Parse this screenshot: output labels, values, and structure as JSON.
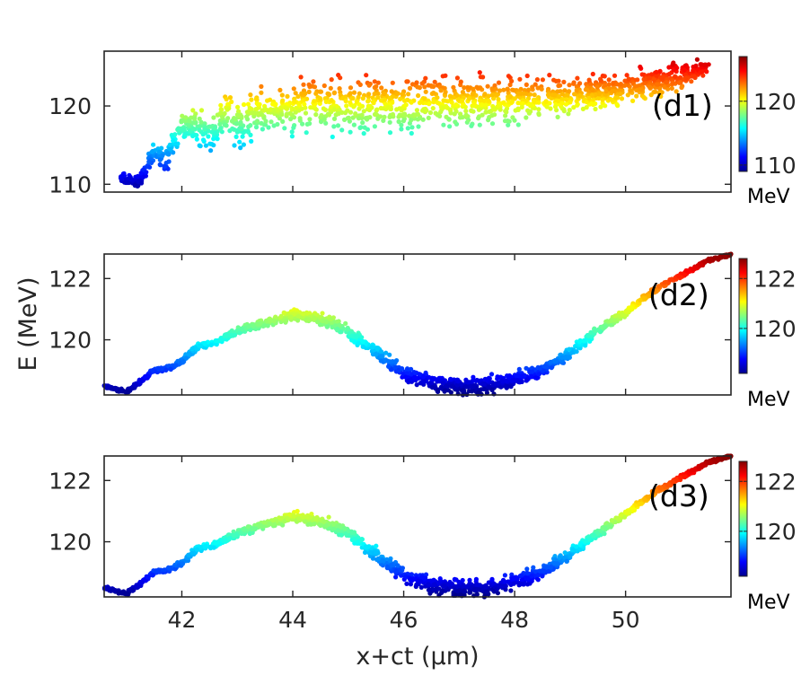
{
  "chart_data": {
    "type": "scatter",
    "xlabel": "x+ct (μm)",
    "ylabel": "E (MeV)",
    "xlim": [
      40.6,
      51.9
    ],
    "xticks": [
      42,
      44,
      46,
      48,
      50
    ],
    "colormap": "jet",
    "panels": [
      {
        "id": "d1",
        "label": "(d1)",
        "ylim": [
          109,
          127
        ],
        "yticks": [
          110,
          120
        ],
        "colorbar": {
          "ticks": [
            110,
            120
          ],
          "range": [
            109,
            127
          ],
          "unit": "MeV"
        },
        "centerline": {
          "x": [
            40.9,
            41.2,
            41.5,
            41.7,
            41.9,
            42.1,
            42.3,
            42.5,
            42.8,
            43.1,
            43.4,
            43.8,
            44.2,
            44.6,
            45.0,
            45.5,
            46.0,
            46.5,
            47.0,
            47.5,
            48.0,
            48.5,
            49.0,
            49.5,
            50.0,
            50.5,
            51.0,
            51.5
          ],
          "y": [
            111,
            110,
            114,
            113,
            116,
            118.5,
            117,
            116,
            119.5,
            117,
            119.5,
            119,
            120,
            119.8,
            120,
            120.2,
            120,
            120.4,
            120.5,
            120.6,
            120.8,
            121,
            121.2,
            121.6,
            122.2,
            123,
            124,
            125
          ]
        },
        "spread": {
          "x": [
            40.9,
            41.5,
            42.0,
            42.5,
            43.0,
            44.0,
            45.0,
            46.0,
            47.0,
            48.0,
            49.0,
            50.0,
            50.5,
            51.0,
            51.5
          ],
          "halfwidth": [
            0.6,
            1.2,
            2.0,
            2.6,
            3.0,
            3.4,
            3.6,
            3.4,
            3.2,
            3.0,
            2.6,
            2.2,
            2.0,
            1.6,
            1.2
          ]
        }
      },
      {
        "id": "d2",
        "label": "(d2)",
        "ylim": [
          118.2,
          122.8
        ],
        "yticks": [
          120,
          122
        ],
        "colorbar": {
          "ticks": [
            120,
            122
          ],
          "range": [
            118.2,
            122.8
          ],
          "unit": "MeV"
        },
        "centerline": {
          "x": [
            40.6,
            41.0,
            41.3,
            41.5,
            41.8,
            42.0,
            42.3,
            42.6,
            42.9,
            43.2,
            43.6,
            44.0,
            44.5,
            45.0,
            45.5,
            46.0,
            46.5,
            47.0,
            47.5,
            48.0,
            48.5,
            49.0,
            49.5,
            50.0,
            50.5,
            51.0,
            51.5,
            51.9
          ],
          "y": [
            118.5,
            118.3,
            118.7,
            119.0,
            119.1,
            119.3,
            119.8,
            119.9,
            120.2,
            120.4,
            120.6,
            120.8,
            120.7,
            120.3,
            119.6,
            118.9,
            118.6,
            118.5,
            118.5,
            118.7,
            119.0,
            119.6,
            120.3,
            120.9,
            121.6,
            122.1,
            122.6,
            122.8
          ]
        },
        "spread": {
          "x": [
            40.6,
            42.0,
            43.0,
            44.0,
            45.0,
            46.0,
            47.0,
            47.5,
            48.0,
            49.0,
            50.0,
            51.0,
            51.9
          ],
          "halfwidth": [
            0.05,
            0.1,
            0.12,
            0.18,
            0.22,
            0.25,
            0.3,
            0.3,
            0.28,
            0.2,
            0.12,
            0.08,
            0.05
          ]
        }
      },
      {
        "id": "d3",
        "label": "(d3)",
        "ylim": [
          118.2,
          122.8
        ],
        "yticks": [
          120,
          122
        ],
        "colorbar": {
          "ticks": [
            120,
            122
          ],
          "range": [
            118.2,
            122.8
          ],
          "unit": "MeV"
        },
        "centerline": {
          "x": [
            40.6,
            41.0,
            41.3,
            41.5,
            41.8,
            42.0,
            42.3,
            42.6,
            42.9,
            43.2,
            43.6,
            44.0,
            44.5,
            45.0,
            45.5,
            46.0,
            46.5,
            47.0,
            47.5,
            48.0,
            48.5,
            49.0,
            49.5,
            50.0,
            50.5,
            51.0,
            51.5,
            51.9
          ],
          "y": [
            118.5,
            118.3,
            118.7,
            119.0,
            119.1,
            119.3,
            119.8,
            119.9,
            120.2,
            120.4,
            120.6,
            120.8,
            120.7,
            120.3,
            119.6,
            118.9,
            118.6,
            118.5,
            118.5,
            118.7,
            119.0,
            119.6,
            120.3,
            120.9,
            121.6,
            122.1,
            122.6,
            122.8
          ]
        },
        "spread": {
          "x": [
            40.6,
            42.0,
            43.0,
            44.0,
            45.0,
            46.0,
            47.0,
            47.5,
            48.0,
            49.0,
            50.0,
            51.0,
            51.9
          ],
          "halfwidth": [
            0.05,
            0.1,
            0.12,
            0.18,
            0.22,
            0.25,
            0.3,
            0.3,
            0.28,
            0.2,
            0.12,
            0.08,
            0.05
          ]
        }
      }
    ]
  }
}
